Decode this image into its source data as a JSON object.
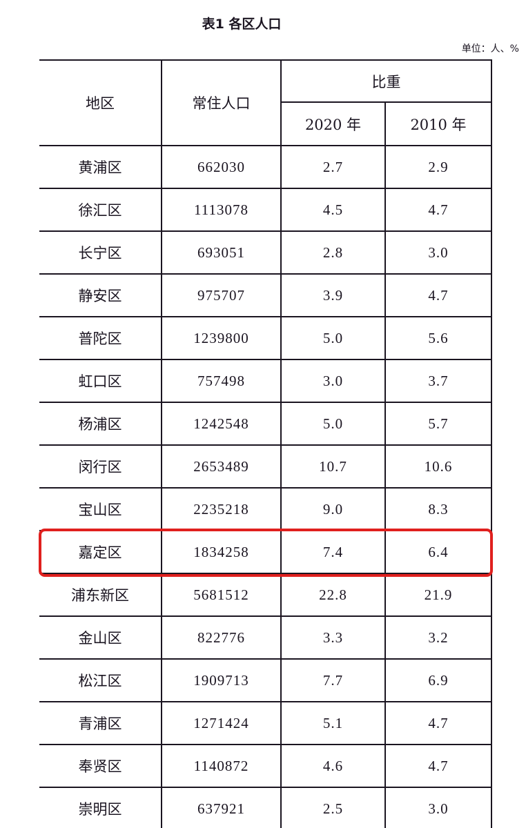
{
  "title": "表1 各区人口",
  "unit": "单位：人、%",
  "headers": {
    "region": "地区",
    "population": "常住人口",
    "share": "比重",
    "y2020": "2020 年",
    "y2010": "2010 年"
  },
  "highlight_color": "#e0201e",
  "highlighted_row": "嘉定区",
  "rows": [
    {
      "region": "黄浦区",
      "population": "662030",
      "s2020": "2.7",
      "s2010": "2.9"
    },
    {
      "region": "徐汇区",
      "population": "1113078",
      "s2020": "4.5",
      "s2010": "4.7"
    },
    {
      "region": "长宁区",
      "population": "693051",
      "s2020": "2.8",
      "s2010": "3.0"
    },
    {
      "region": "静安区",
      "population": "975707",
      "s2020": "3.9",
      "s2010": "4.7"
    },
    {
      "region": "普陀区",
      "population": "1239800",
      "s2020": "5.0",
      "s2010": "5.6"
    },
    {
      "region": "虹口区",
      "population": "757498",
      "s2020": "3.0",
      "s2010": "3.7"
    },
    {
      "region": "杨浦区",
      "population": "1242548",
      "s2020": "5.0",
      "s2010": "5.7"
    },
    {
      "region": "闵行区",
      "population": "2653489",
      "s2020": "10.7",
      "s2010": "10.6"
    },
    {
      "region": "宝山区",
      "population": "2235218",
      "s2020": "9.0",
      "s2010": "8.3"
    },
    {
      "region": "嘉定区",
      "population": "1834258",
      "s2020": "7.4",
      "s2010": "6.4"
    },
    {
      "region": "浦东新区",
      "population": "5681512",
      "s2020": "22.8",
      "s2010": "21.9"
    },
    {
      "region": "金山区",
      "population": "822776",
      "s2020": "3.3",
      "s2010": "3.2"
    },
    {
      "region": "松江区",
      "population": "1909713",
      "s2020": "7.7",
      "s2010": "6.9"
    },
    {
      "region": "青浦区",
      "population": "1271424",
      "s2020": "5.1",
      "s2010": "4.7"
    },
    {
      "region": "奉贤区",
      "population": "1140872",
      "s2020": "4.6",
      "s2010": "4.7"
    },
    {
      "region": "崇明区",
      "population": "637921",
      "s2020": "2.5",
      "s2010": "3.0"
    }
  ]
}
